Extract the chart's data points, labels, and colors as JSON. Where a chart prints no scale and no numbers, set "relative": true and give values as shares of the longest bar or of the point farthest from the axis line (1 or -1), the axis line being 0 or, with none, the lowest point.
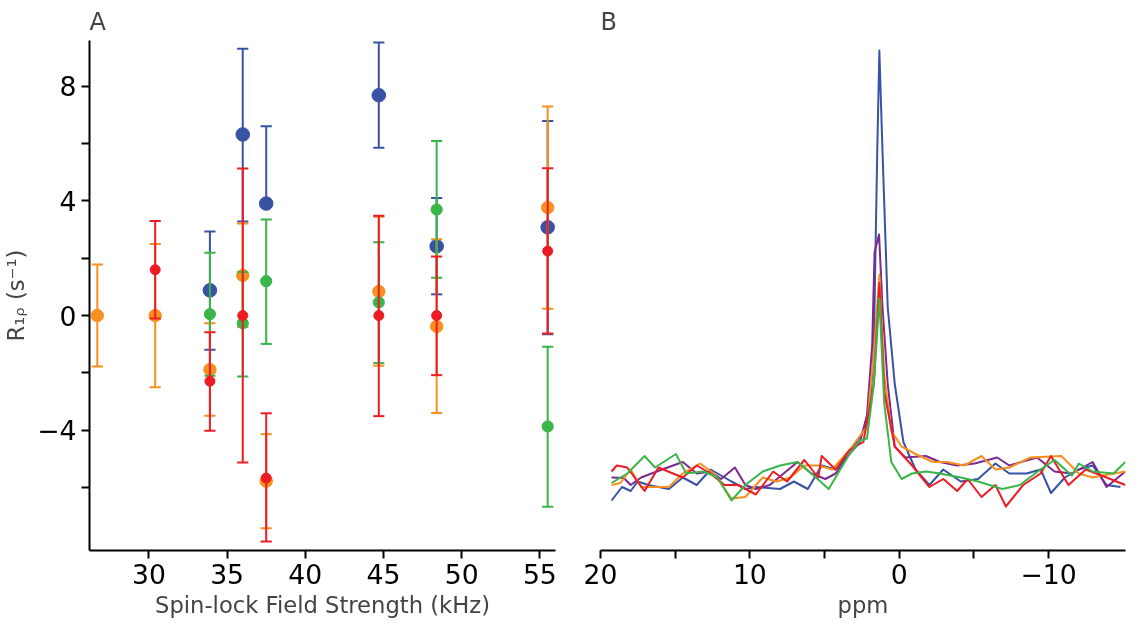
{
  "chart_data": [
    {
      "type": "scatter",
      "title": "A",
      "xlabel": "Spin-lock Field Strength (kHz)",
      "ylabel": "R₁ᵨ (s⁻¹)",
      "xlim": [
        26.2,
        56.0
      ],
      "ylim": [
        -8.2,
        9.6
      ],
      "xticks": [
        30,
        35,
        40,
        45,
        50,
        55
      ],
      "yticks": [
        8,
        {
          "value": 6,
          "label": null
        },
        4,
        {
          "value": 2,
          "label": null
        },
        0,
        {
          "value": -2,
          "label": null
        },
        -4,
        {
          "value": -6,
          "label": null
        }
      ],
      "grid": false,
      "marker": "circle",
      "series": [
        {
          "color": "#3953a4",
          "x": [
            33.9,
            36.0,
            37.5,
            44.7,
            48.4,
            55.5
          ],
          "values": [
            0.88,
            6.32,
            3.91,
            7.69,
            2.42,
            3.08
          ],
          "errors": [
            [
              -1.19,
              2.93
            ],
            [
              3.28,
              9.31
            ],
            [
              3.91,
              6.61
            ],
            [
              5.86,
              9.53
            ],
            [
              0.74,
              4.1
            ],
            [
              -0.65,
              6.79
            ]
          ]
        },
        {
          "color": "#f7901e",
          "x": [
            26.7,
            30.4,
            33.9,
            36.0,
            37.5,
            44.7,
            48.4,
            55.5
          ],
          "values": [
            0,
            0,
            -1.89,
            1.4,
            -5.78,
            0.84,
            -0.38,
            3.77
          ],
          "errors": [
            [
              -1.78,
              1.78
            ],
            [
              -2.5,
              2.5
            ],
            [
              -3.5,
              -0.27
            ],
            [
              -0.4,
              3.21
            ],
            [
              -7.42,
              -4.14
            ],
            [
              -1.75,
              3.45
            ],
            [
              -3.4,
              2.66
            ],
            [
              0.24,
              7.3
            ]
          ]
        },
        {
          "color": "#3ab54a",
          "x": [
            33.9,
            36.0,
            37.5,
            44.7,
            48.4,
            55.5
          ],
          "values": [
            0.05,
            -0.27,
            1.2,
            0.46,
            3.7,
            -3.87
          ],
          "errors": [
            [
              -2.1,
              2.19
            ],
            [
              -2.13,
              1.52
            ],
            [
              -0.99,
              3.35
            ],
            [
              -1.66,
              2.56
            ],
            [
              1.32,
              6.09
            ],
            [
              -6.67,
              -1.09
            ]
          ]
        },
        {
          "color": "#ed1c24",
          "x": [
            30.4,
            33.9,
            36.0,
            37.5,
            44.7,
            48.4,
            55.5
          ],
          "values": [
            1.6,
            -2.29,
            0,
            -5.67,
            0,
            0,
            2.25
          ],
          "errors": [
            [
              -0.1,
              3.3
            ],
            [
              -4.02,
              -0.58
            ],
            [
              -5.13,
              5.13
            ],
            [
              -7.89,
              -3.41
            ],
            [
              -3.51,
              3.48
            ],
            [
              -2.08,
              2.06
            ],
            [
              -0.63,
              5.14
            ]
          ]
        }
      ]
    },
    {
      "type": "line",
      "title": "B",
      "xlabel": "ppm",
      "relative": true,
      "xlim": [
        20,
        -15.15
      ],
      "xticks": [
        20,
        {
          "value": 15,
          "label": null
        },
        10,
        {
          "value": 5,
          "label": null
        },
        0,
        {
          "value": -5,
          "label": null
        },
        -10
      ],
      "tick_labels": "x",
      "grid": false,
      "marker": "none",
      "line_style": "solid",
      "series": [
        {
          "color": "#3953a4",
          "x": [
            19.26,
            18.56,
            17.98,
            17.51,
            16.81,
            15.42,
            14.49,
            13.56,
            12.63,
            11.93,
            11.23,
            10.3,
            9.6,
            7.98,
            7.05,
            6.12,
            5.19,
            4.26,
            3.33,
            2.4,
            1.93,
            1.7,
            1.47,
            1.33,
            1.12,
            0.77,
            0.3,
            -0.28,
            -1.09,
            -2.02,
            -2.95,
            -4.12,
            -5.28,
            -6.44,
            -7.37,
            -8.53,
            -9.47,
            -10.16,
            -11.09,
            -12.02,
            -12.95,
            -13.88,
            -14.81
          ],
          "values": [
            0.1,
            0.127,
            0.119,
            0.138,
            0.131,
            0.123,
            0.146,
            0.131,
            0.162,
            0.15,
            0.138,
            0.123,
            0.127,
            0.123,
            0.138,
            0.123,
            0.17,
            0.162,
            0.193,
            0.239,
            0.294,
            0.411,
            0.799,
            1,
            0.799,
            0.487,
            0.333,
            0.217,
            0.162,
            0.131,
            0.162,
            0.138,
            0.143,
            0.174,
            0.154,
            0.154,
            0.162,
            0.115,
            0.146,
            0.162,
            0.17,
            0.131,
            0.127
          ]
        },
        {
          "color": "#7b2a8e",
          "x": [
            19.26,
            18.44,
            17.98,
            17.28,
            15.88,
            14.49,
            13.56,
            12.63,
            11.93,
            11.0,
            10.3,
            9.6,
            8.67,
            7.74,
            6.81,
            5.88,
            4.95,
            4.26,
            3.33,
            2.63,
            2.16,
            1.81,
            1.65,
            1.35,
            1.12,
            0.77,
            0.3,
            -0.4,
            -1.79,
            -2.72,
            -3.88,
            -5.05,
            -6.56,
            -7.37,
            -9.23,
            -10.4,
            -11.56,
            -12.95,
            -13.88,
            -15.14
          ],
          "values": [
            0.146,
            0.145,
            0.131,
            0.146,
            0.162,
            0.177,
            0.154,
            0.158,
            0.143,
            0.166,
            0.131,
            0.123,
            0.131,
            0.154,
            0.177,
            0.154,
            0.143,
            0.154,
            0.193,
            0.217,
            0.27,
            0.411,
            0.597,
            0.632,
            0.487,
            0.333,
            0.208,
            0.186,
            0.189,
            0.177,
            0.17,
            0.174,
            0.186,
            0.17,
            0.186,
            0.158,
            0.154,
            0.177,
            0.127,
            0.158
          ]
        },
        {
          "color": "#f7901e",
          "x": [
            19.26,
            18.67,
            17.98,
            17.28,
            15.42,
            14.49,
            13.33,
            12.4,
            11.23,
            10.3,
            9.14,
            8.21,
            7.28,
            6.35,
            5.42,
            4.49,
            3.33,
            2.16,
            1.7,
            1.33,
            1.0,
            0.53,
            -0.16,
            -1.09,
            -2.26,
            -3.19,
            -4.35,
            -5.51,
            -6.44,
            -7.37,
            -8.77,
            -10.86,
            -12.02,
            -12.95,
            -14.35,
            -15.14
          ],
          "values": [
            0.131,
            0.135,
            0.162,
            0.127,
            0.127,
            0.154,
            0.174,
            0.154,
            0.104,
            0.107,
            0.146,
            0.138,
            0.146,
            0.17,
            0.17,
            0.162,
            0.201,
            0.248,
            0.395,
            0.552,
            0.349,
            0.239,
            0.208,
            0.193,
            0.177,
            0.177,
            0.17,
            0.189,
            0.162,
            0.166,
            0.186,
            0.189,
            0.154,
            0.146,
            0.154,
            0.158
          ]
        },
        {
          "color": "#ed1c24",
          "x": [
            19.26,
            18.91,
            18.21,
            17.05,
            16.12,
            14.49,
            13.56,
            12.63,
            11.7,
            10.77,
            9.6,
            8.44,
            7.51,
            6.35,
            5.42,
            5.19,
            4.26,
            3.33,
            2.4,
            1.7,
            1.33,
            1.0,
            0.3,
            -0.86,
            -2.02,
            -2.95,
            -3.88,
            -4.58,
            -5.51,
            -6.44,
            -7.14,
            -8.3,
            -9.47,
            -10.16,
            -11.33,
            -12.49,
            -13.88,
            -15.14
          ],
          "values": [
            0.158,
            0.17,
            0.166,
            0.119,
            0.166,
            0.146,
            0.17,
            0.154,
            0.131,
            0.131,
            0.112,
            0.158,
            0.138,
            0.181,
            0.146,
            0.189,
            0.162,
            0.201,
            0.217,
            0.333,
            0.535,
            0.317,
            0.208,
            0.17,
            0.127,
            0.143,
            0.119,
            0.143,
            0.107,
            0.131,
            0.088,
            0.131,
            0.154,
            0.189,
            0.131,
            0.162,
            0.146,
            0.131
          ]
        },
        {
          "color": "#3ab54a",
          "x": [
            19.26,
            18.21,
            17.05,
            16.35,
            14.95,
            14.26,
            13.09,
            12.16,
            11.23,
            10.3,
            9.14,
            7.98,
            6.81,
            5.88,
            4.72,
            3.33,
            2.63,
            2.16,
            1.7,
            1.33,
            1.0,
            0.53,
            -0.16,
            -0.86,
            -1.79,
            -2.72,
            -4.12,
            -5.28,
            -6.91,
            -8.07,
            -9.47,
            -10.4,
            -11.56,
            -12.02,
            -12.95,
            -14.35,
            -15.14
          ],
          "values": [
            0.135,
            0.154,
            0.189,
            0.166,
            0.193,
            0.154,
            0.158,
            0.146,
            0.1,
            0.131,
            0.158,
            0.17,
            0.177,
            0.154,
            0.123,
            0.193,
            0.22,
            0.224,
            0.333,
            0.504,
            0.294,
            0.177,
            0.143,
            0.154,
            0.158,
            0.154,
            0.146,
            0.138,
            0.123,
            0.131,
            0.162,
            0.181,
            0.15,
            0.174,
            0.158,
            0.154,
            0.177
          ]
        }
      ]
    }
  ]
}
